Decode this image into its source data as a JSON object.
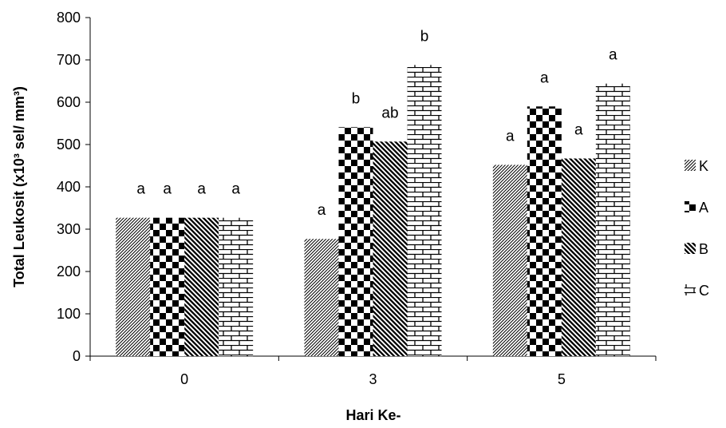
{
  "chart_data": {
    "type": "bar",
    "categories": [
      "0",
      "3",
      "5"
    ],
    "series": [
      {
        "name": "K",
        "pattern": "diagonal-thin",
        "values": [
          327,
          277,
          452
        ],
        "labels": [
          "a",
          "a",
          "a"
        ]
      },
      {
        "name": "A",
        "pattern": "checker",
        "values": [
          327,
          541,
          590
        ],
        "labels": [
          "a",
          "b",
          "a"
        ]
      },
      {
        "name": "B",
        "pattern": "diagonal-thick",
        "values": [
          327,
          507,
          467
        ],
        "labels": [
          "a",
          "ab",
          "a"
        ]
      },
      {
        "name": "C",
        "pattern": "brick",
        "values": [
          327,
          688,
          644
        ],
        "labels": [
          "a",
          "b",
          "a"
        ]
      }
    ],
    "xlabel": "Hari Ke-",
    "ylabel": "Total Leukosit (x10³ sel/ mm³)",
    "ylim": [
      0,
      800
    ],
    "yticks": [
      0,
      100,
      200,
      300,
      400,
      500,
      600,
      700,
      800
    ],
    "grid": false,
    "legend": "right"
  },
  "colors": {
    "ink": "#000000",
    "paper": "#ffffff"
  }
}
